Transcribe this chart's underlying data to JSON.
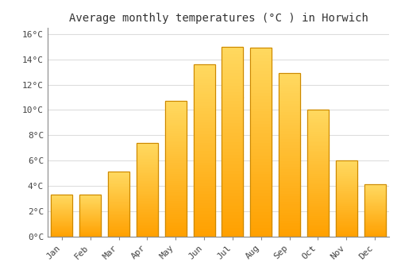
{
  "title": "Average monthly temperatures (°C ) in Horwich",
  "months": [
    "Jan",
    "Feb",
    "Mar",
    "Apr",
    "May",
    "Jun",
    "Jul",
    "Aug",
    "Sep",
    "Oct",
    "Nov",
    "Dec"
  ],
  "values": [
    3.3,
    3.3,
    5.1,
    7.4,
    10.7,
    13.6,
    15.0,
    14.9,
    12.9,
    10.0,
    6.0,
    4.1
  ],
  "ylim": [
    0,
    16.5
  ],
  "yticks": [
    0,
    2,
    4,
    6,
    8,
    10,
    12,
    14,
    16
  ],
  "ytick_labels": [
    "0°C",
    "2°C",
    "4°C",
    "6°C",
    "8°C",
    "10°C",
    "12°C",
    "14°C",
    "16°C"
  ],
  "bar_color_bottom": "#FFA500",
  "bar_color_top": "#FFD966",
  "bar_edge_color": "#CC8800",
  "background_color": "#FFFFFF",
  "grid_color": "#DDDDDD",
  "title_fontsize": 10,
  "tick_fontsize": 8,
  "bar_width": 0.75
}
